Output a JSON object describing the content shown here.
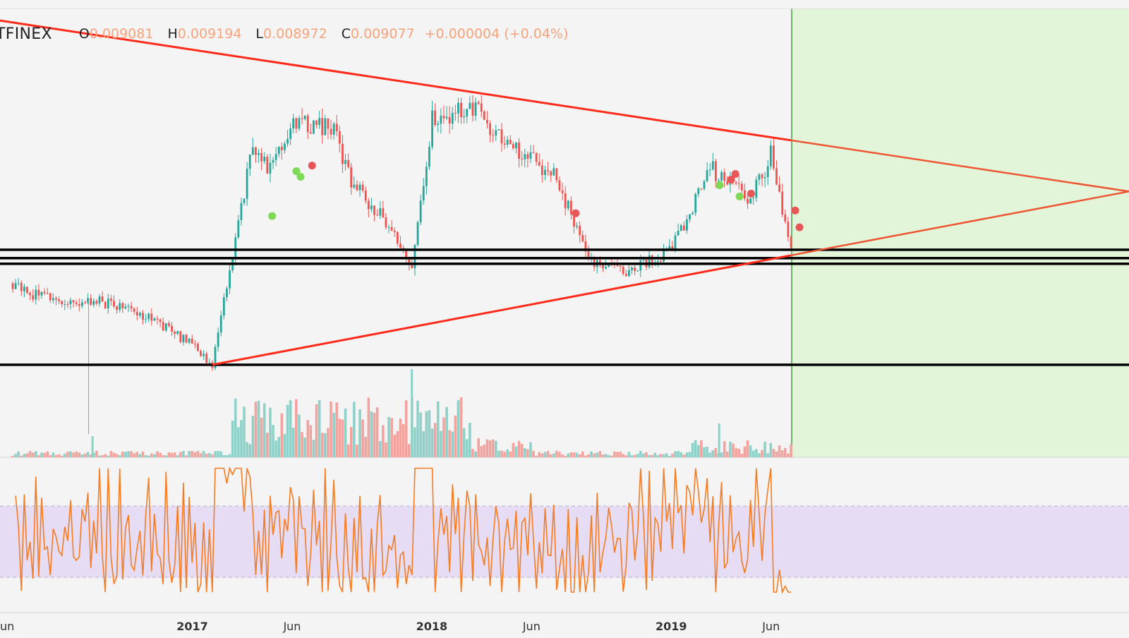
{
  "legend": {
    "symbol": "TFINEX",
    "open_key": "O",
    "open": "0.009081",
    "high_key": "H",
    "high": "0.009194",
    "low_key": "L",
    "low": "0.008972",
    "close_key": "C",
    "close": "0.009077",
    "change": "+0.000004 (+0.04%)"
  },
  "colors": {
    "background": "#f4f4f4",
    "up_candle": "#26a69a",
    "down_candle": "#ef5350",
    "trendline": "#ff2a1a",
    "projection_line": "#ee5533",
    "support_line": "#000000",
    "forecast_zone": "#e3f5d8",
    "forecast_border": "#4a9c46",
    "volume_up": "#8fd1c8",
    "volume_down": "#f3a39e",
    "rsi_line": "#f57c22",
    "rsi_band": "#e6dcf3",
    "signal_buy": "#7ed957",
    "signal_sell": "#e85757"
  },
  "chart_data": {
    "type": "candlestick",
    "x_axis_ticks": [
      "un",
      "2017",
      "Jun",
      "2018",
      "Jun",
      "2019",
      "Jun"
    ],
    "x_range": [
      "2016-04",
      "2019-07"
    ],
    "price_path": [
      {
        "date": "2016-04",
        "price": 0.0092
      },
      {
        "date": "2016-05",
        "price": 0.0088
      },
      {
        "date": "2016-07",
        "price": 0.0086
      },
      {
        "date": "2016-09",
        "price": 0.0085
      },
      {
        "date": "2016-11",
        "price": 0.0079
      },
      {
        "date": "2017-01",
        "price": 0.007
      },
      {
        "date": "2017-02",
        "price": 0.0063
      },
      {
        "date": "2017-04",
        "price": 0.014
      },
      {
        "date": "2017-05",
        "price": 0.0132
      },
      {
        "date": "2017-06",
        "price": 0.015
      },
      {
        "date": "2017-08",
        "price": 0.0148
      },
      {
        "date": "2017-09",
        "price": 0.0128
      },
      {
        "date": "2017-11",
        "price": 0.0112
      },
      {
        "date": "2017-12",
        "price": 0.0098
      },
      {
        "date": "2018-01",
        "price": 0.015
      },
      {
        "date": "2018-03",
        "price": 0.0155
      },
      {
        "date": "2018-05",
        "price": 0.014
      },
      {
        "date": "2018-07",
        "price": 0.0132
      },
      {
        "date": "2018-09",
        "price": 0.01
      },
      {
        "date": "2018-11",
        "price": 0.0096
      },
      {
        "date": "2019-01",
        "price": 0.0104
      },
      {
        "date": "2019-03",
        "price": 0.0133
      },
      {
        "date": "2019-05",
        "price": 0.0122
      },
      {
        "date": "2019-06",
        "price": 0.0138
      },
      {
        "date": "2019-07",
        "price": 0.0103
      }
    ],
    "trendlines": [
      {
        "kind": "upper",
        "from": {
          "date": "2016-04",
          "price": 0.0185
        },
        "to": {
          "date": "2019-07",
          "price": 0.0143
        }
      },
      {
        "kind": "lower",
        "from": {
          "date": "2017-02",
          "price": 0.0063
        },
        "to": {
          "date": "2019-07",
          "price": 0.0102
        }
      }
    ],
    "horizontal_levels": [
      0.0104,
      0.0101,
      0.0099,
      0.0063
    ],
    "rsi": {
      "band": [
        30,
        70
      ],
      "min_visible": 20,
      "max_visible": 85
    }
  }
}
